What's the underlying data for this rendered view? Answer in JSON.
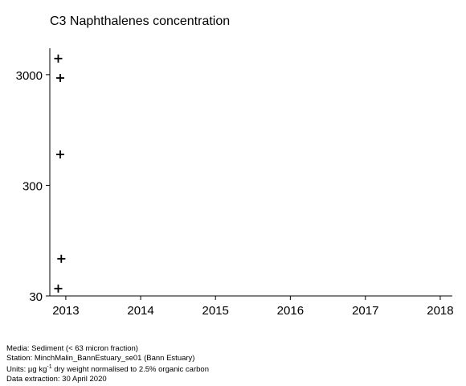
{
  "chart_data": {
    "type": "scatter",
    "title": "C3 Naphthalenes concentration",
    "xlabel": "",
    "ylabel": "",
    "y_scale": "log",
    "marker": "plus",
    "xlim": [
      "2012-10-15",
      "2018-03-01"
    ],
    "ylim": [
      30,
      5200
    ],
    "x_ticks": [
      "2013",
      "2014",
      "2015",
      "2016",
      "2017",
      "2018"
    ],
    "y_ticks": [
      "30",
      "300",
      "3000"
    ],
    "points": [
      {
        "x": "2012-11-25",
        "y": 4200
      },
      {
        "x": "2012-12-05",
        "y": 2800
      },
      {
        "x": "2012-12-05",
        "y": 570
      },
      {
        "x": "2012-12-10",
        "y": 65
      },
      {
        "x": "2012-11-25",
        "y": 35
      }
    ]
  },
  "footer": {
    "media": "Media: Sediment (< 63 micron fraction)",
    "station": "Station: MinchMalin_BannEstuary_se01 (Bann Estuary)",
    "units_prefix": "Units:  µg kg",
    "units_exp": "-1",
    "units_suffix": " dry weight normalised to 2.5% organic carbon",
    "extraction": "Data extraction: 30 April 2020"
  }
}
